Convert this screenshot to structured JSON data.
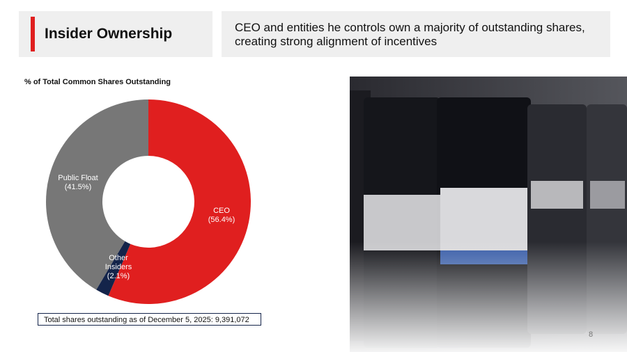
{
  "header": {
    "title": "Insider Ownership",
    "description": "CEO and entities he controls own a majority of outstanding shares, creating strong alignment of incentives"
  },
  "chart_data": {
    "type": "donut",
    "title": "% of Total Common Shares Outstanding",
    "categories": [
      "CEO",
      "Other Insiders",
      "Public Float"
    ],
    "values": [
      56.4,
      2.1,
      41.5
    ],
    "value_labels": [
      "(56.4%)",
      "(2.1%)",
      "(41.5%)"
    ],
    "colors": [
      "#e01f1f",
      "#14244a",
      "#777777"
    ]
  },
  "footnote": "Total shares outstanding as of December 5, 2025: 9,391,072",
  "page_number": "8"
}
